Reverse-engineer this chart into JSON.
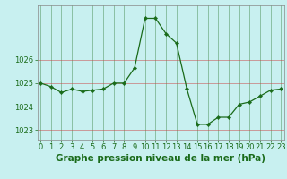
{
  "x": [
    0,
    1,
    2,
    3,
    4,
    5,
    6,
    7,
    8,
    9,
    10,
    11,
    12,
    13,
    14,
    15,
    16,
    17,
    18,
    19,
    20,
    21,
    22,
    23
  ],
  "y": [
    1025.0,
    1024.85,
    1024.6,
    1024.75,
    1024.65,
    1024.7,
    1024.75,
    1025.0,
    1025.0,
    1025.65,
    1027.75,
    1027.75,
    1027.1,
    1026.7,
    1024.75,
    1023.25,
    1023.25,
    1023.55,
    1023.55,
    1024.1,
    1024.2,
    1024.45,
    1024.7,
    1024.75
  ],
  "line_color": "#1a6b1a",
  "marker_color": "#1a6b1a",
  "bg_color": "#c8f0f0",
  "grid_color_h": "#cc4444",
  "grid_color_v": "#1a6b1a",
  "title": "Graphe pression niveau de la mer (hPa)",
  "ylim": [
    1022.6,
    1028.3
  ],
  "yticks": [
    1023,
    1024,
    1025,
    1026
  ],
  "xticks": [
    0,
    1,
    2,
    3,
    4,
    5,
    6,
    7,
    8,
    9,
    10,
    11,
    12,
    13,
    14,
    15,
    16,
    17,
    18,
    19,
    20,
    21,
    22,
    23
  ],
  "title_fontsize": 7.5,
  "tick_fontsize": 6,
  "title_color": "#1a6b1a",
  "tick_color": "#1a6b1a",
  "axis_color": "#888888"
}
